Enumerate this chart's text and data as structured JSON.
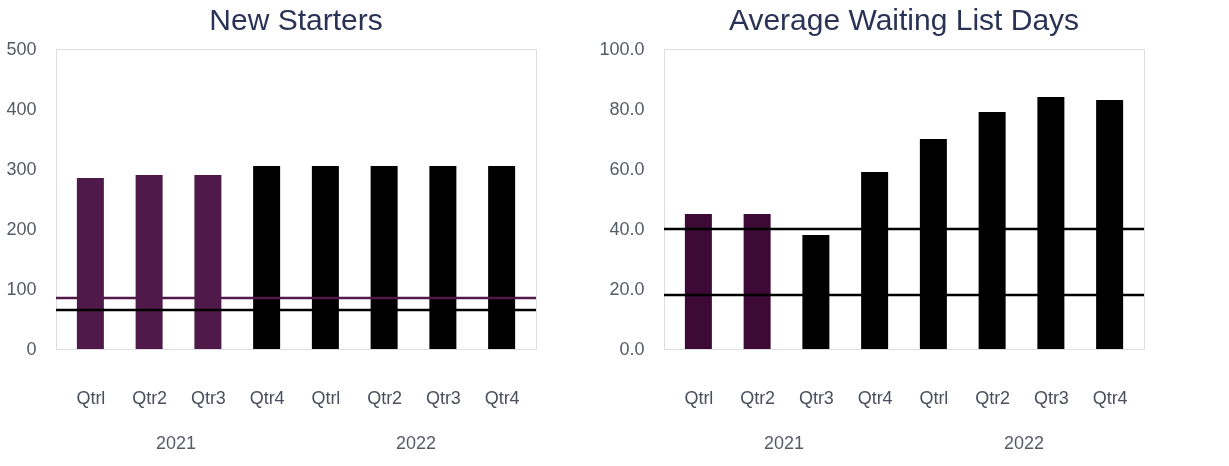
{
  "chart_data": [
    {
      "type": "bar",
      "title": "New Starters",
      "categories": [
        "Qtrl",
        "Qtr2",
        "Qtr3",
        "Qtr4",
        "Qtrl",
        "Qtr2",
        "Qtr3",
        "Qtr4"
      ],
      "series": [
        {
          "values": [
            285,
            290,
            290,
            305,
            305,
            305,
            305,
            305
          ],
          "colors": [
            "#4f1a4a",
            "#4f1a4a",
            "#4f1a4a",
            "#000000",
            "#000000",
            "#000000",
            "#000000",
            "#000000"
          ]
        }
      ],
      "ref_lines": [
        {
          "axis": "y",
          "value": 85,
          "color": "#4f1a4a"
        },
        {
          "axis": "y",
          "value": 65,
          "color": "#000000"
        }
      ],
      "ylim": [
        0,
        500
      ],
      "yticks": [
        0,
        100,
        200,
        300,
        400,
        500
      ],
      "grid": false,
      "annotations": [
        "2021",
        "2022"
      ]
    },
    {
      "type": "bar",
      "title": "Average Waiting List Days",
      "categories": [
        "Qtrl",
        "Qtr2",
        "Qtr3",
        "Qtr4",
        "Qtrl",
        "Qtr2",
        "Qtr3",
        "Qtr4"
      ],
      "series": [
        {
          "values": [
            45,
            45,
            38,
            59,
            70,
            79,
            84,
            83
          ],
          "colors": [
            "#3d0a35",
            "#3d0a35",
            "#000000",
            "#000000",
            "#000000",
            "#000000",
            "#000000",
            "#000000"
          ]
        }
      ],
      "ref_lines": [
        {
          "axis": "y",
          "value": 40,
          "color": "#000000"
        },
        {
          "axis": "y",
          "value": 18,
          "color": "#000000"
        }
      ],
      "ylim": [
        0,
        100
      ],
      "yticks": [
        {
          "value": 0,
          "label": "0.0"
        },
        {
          "value": 20,
          "label": "20.0"
        },
        {
          "value": 40,
          "label": "40.0"
        },
        {
          "value": 60,
          "label": "60.0"
        },
        {
          "value": 80,
          "label": "80.0"
        },
        {
          "value": 100,
          "label": "100.0"
        }
      ],
      "grid": false,
      "annotations": [
        "2021",
        "2022"
      ]
    }
  ]
}
